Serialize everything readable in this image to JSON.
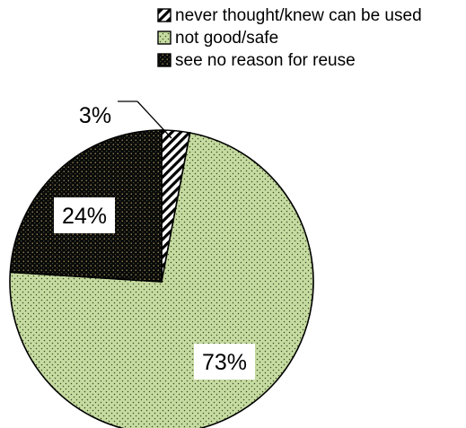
{
  "chart_data": {
    "type": "pie",
    "title": "",
    "slices": [
      {
        "label": "never thought/knew can be used",
        "value": 3,
        "value_label": "3%",
        "pattern": "diagonal-hatch",
        "color": "#000000"
      },
      {
        "label": "not good/safe",
        "value": 73,
        "value_label": "73%",
        "pattern": "dotted",
        "color": "#c6dba0"
      },
      {
        "label": "see no reason for reuse",
        "value": 24,
        "value_label": "24%",
        "pattern": "dotted",
        "color": "#0a0a0a"
      }
    ],
    "start_angle_deg": 0,
    "direction": "clockwise",
    "legend_position": "top-right"
  }
}
